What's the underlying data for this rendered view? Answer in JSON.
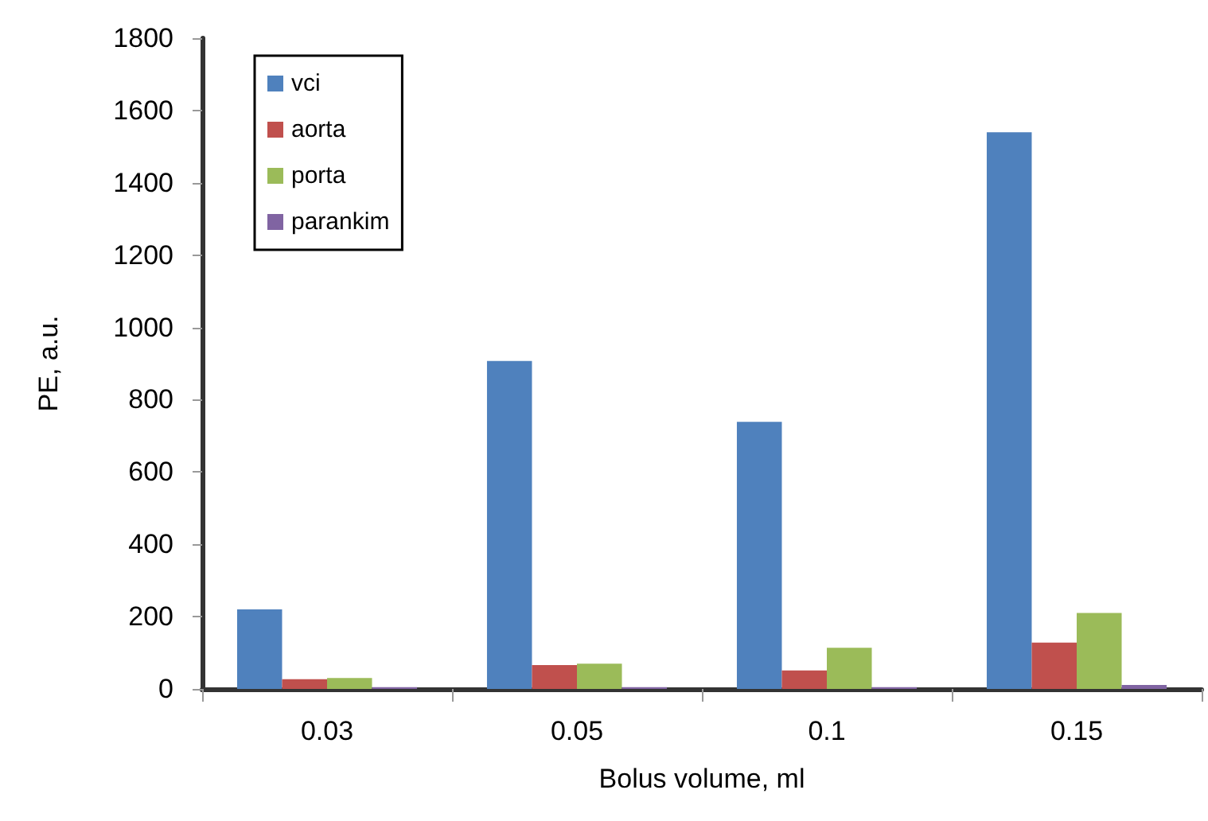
{
  "chart_data": {
    "type": "bar",
    "xlabel": "Bolus volume, ml",
    "ylabel": "PE, a.u.",
    "categories": [
      "0.03",
      "0.05",
      "0.1",
      "0.15"
    ],
    "series": [
      {
        "name": "vci",
        "color": "#4f81bd",
        "values": [
          220,
          907,
          739,
          1540
        ]
      },
      {
        "name": "aorta",
        "color": "#c0504d",
        "values": [
          27,
          66,
          51,
          128
        ]
      },
      {
        "name": "porta",
        "color": "#9bbb59",
        "values": [
          30,
          70,
          114,
          210
        ]
      },
      {
        "name": "parankim",
        "color": "#8064a2",
        "values": [
          5,
          5,
          5,
          11
        ]
      }
    ],
    "ylim": [
      0,
      1800
    ],
    "yticks": [
      0,
      200,
      400,
      600,
      800,
      1000,
      1200,
      1400,
      1600,
      1800
    ],
    "grid": false,
    "legend": "top left"
  }
}
